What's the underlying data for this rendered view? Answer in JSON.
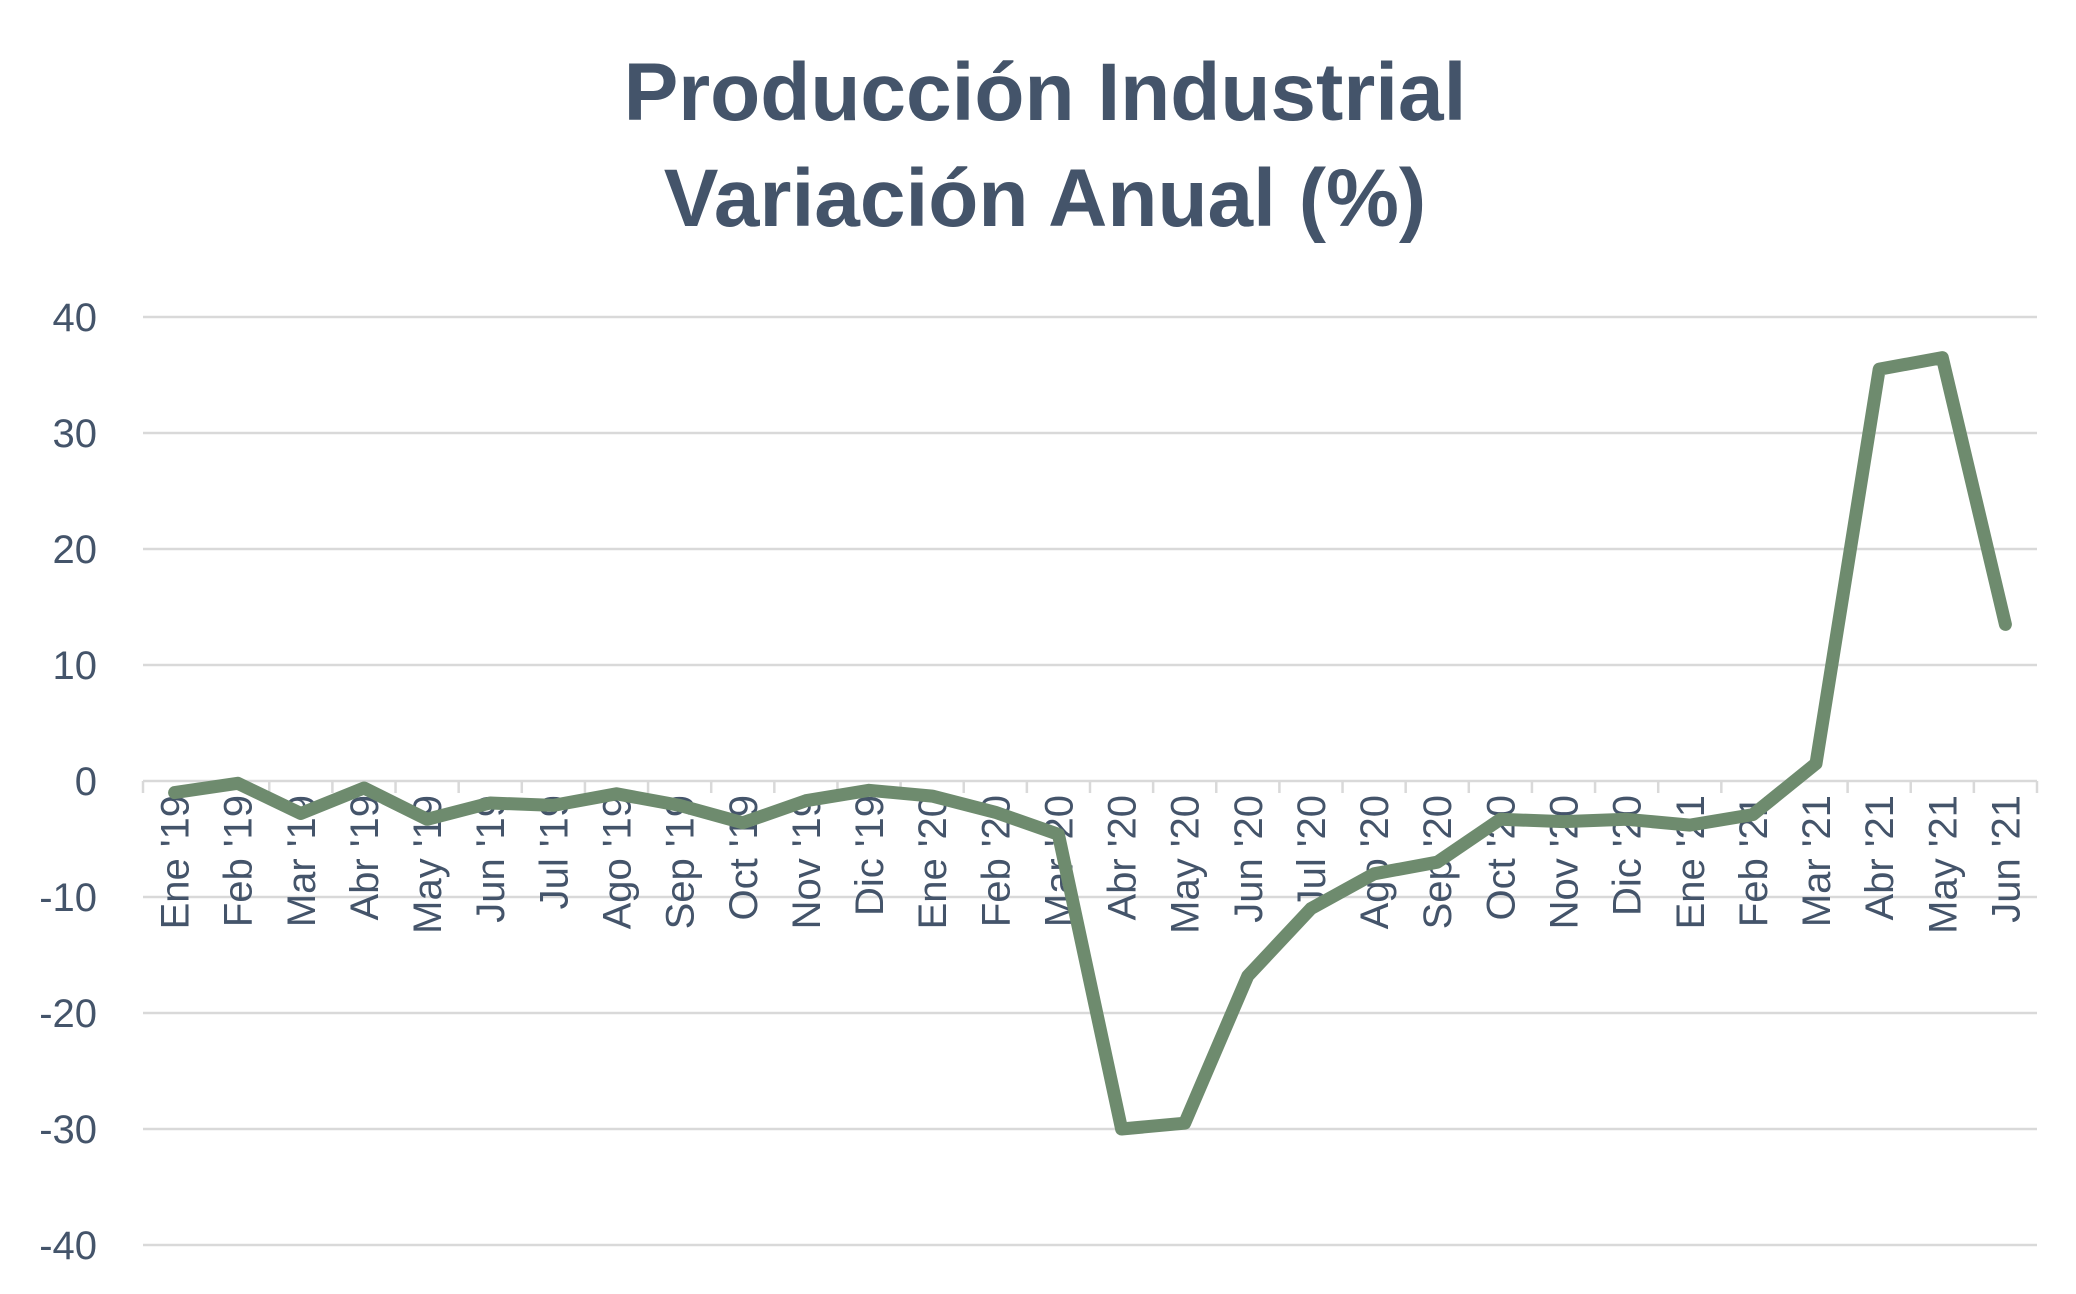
{
  "chart_data": {
    "type": "line",
    "title": "Producción Industrial",
    "subtitle": "Variación Anual (%)",
    "xlabel": "",
    "ylabel": "",
    "ylim": [
      -40,
      40
    ],
    "yticks": [
      40,
      30,
      20,
      10,
      0,
      -10,
      -20,
      -30,
      -40
    ],
    "grid": true,
    "legend": "none",
    "categories": [
      "Ene '19",
      "Feb '19",
      "Mar '19",
      "Abr '19",
      "May '19",
      "Jun '19",
      "Jul '19",
      "Ago '19",
      "Sep '19",
      "Oct '19",
      "Nov '19",
      "Dic '19",
      "Ene '20",
      "Feb '20",
      "Mar '20",
      "Abr '20",
      "May '20",
      "Jun '20",
      "Jul '20",
      "Ago '20",
      "Sep '20",
      "Oct '20",
      "Nov '20",
      "Dic '20",
      "Ene '21",
      "Feb '21",
      "Mar '21",
      "Abr '21",
      "May '21",
      "Jun '21"
    ],
    "series": [
      {
        "name": "Producción Industrial",
        "color": "#6e8b6e",
        "values": [
          -1.0,
          -0.2,
          -2.8,
          -0.6,
          -3.3,
          -1.9,
          -2.1,
          -1.1,
          -2.1,
          -3.6,
          -1.7,
          -0.8,
          -1.3,
          -2.7,
          -4.6,
          -30.0,
          -29.5,
          -16.8,
          -11.0,
          -8.0,
          -7.0,
          -3.3,
          -3.5,
          -3.3,
          -3.8,
          -2.9,
          1.5,
          35.5,
          36.5,
          13.5
        ]
      }
    ]
  }
}
